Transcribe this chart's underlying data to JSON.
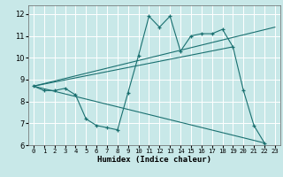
{
  "xlabel": "Humidex (Indice chaleur)",
  "bg_color": "#c8e8e8",
  "grid_color": "#ffffff",
  "line_color": "#1a7070",
  "xlim": [
    -0.5,
    23.5
  ],
  "ylim": [
    6,
    12.4
  ],
  "xticks": [
    0,
    1,
    2,
    3,
    4,
    5,
    6,
    7,
    8,
    9,
    10,
    11,
    12,
    13,
    14,
    15,
    16,
    17,
    18,
    19,
    20,
    21,
    22,
    23
  ],
  "yticks": [
    6,
    7,
    8,
    9,
    10,
    11,
    12
  ],
  "main_x": [
    0,
    1,
    2,
    3,
    4,
    5,
    6,
    7,
    8,
    9,
    10,
    11,
    12,
    13,
    14,
    15,
    16,
    17,
    18,
    19,
    20,
    21,
    22
  ],
  "main_y": [
    8.7,
    8.5,
    8.5,
    8.6,
    8.3,
    7.2,
    6.9,
    6.8,
    6.7,
    8.4,
    10.1,
    11.9,
    11.4,
    11.9,
    10.3,
    11.0,
    11.1,
    11.1,
    11.3,
    10.5,
    8.5,
    6.9,
    6.1
  ],
  "line1": {
    "x": [
      0,
      23
    ],
    "y": [
      8.7,
      11.4
    ]
  },
  "line2": {
    "x": [
      0,
      19
    ],
    "y": [
      8.7,
      10.5
    ]
  },
  "line3": {
    "x": [
      0,
      22
    ],
    "y": [
      8.7,
      6.1
    ]
  }
}
